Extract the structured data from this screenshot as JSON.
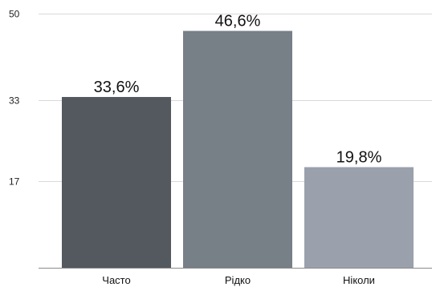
{
  "chart_data": {
    "type": "bar",
    "categories": [
      "Часто",
      "Рідко",
      "Ніколи"
    ],
    "values": [
      33.6,
      46.6,
      19.8
    ],
    "data_labels": [
      "33,6%",
      "46,6%",
      "19,8%"
    ],
    "ylim": [
      0,
      50
    ],
    "y_ticks": [
      17,
      33,
      50
    ],
    "y_tick_labels": [
      "17",
      "33",
      "50"
    ],
    "grid": true,
    "legend": "none",
    "colors": [
      "#54595f",
      "#777f87",
      "#9aa1ad"
    ]
  }
}
